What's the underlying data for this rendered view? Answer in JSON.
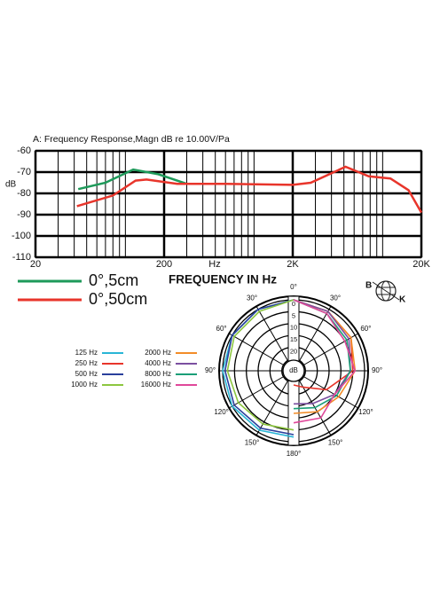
{
  "chart_data": [
    {
      "type": "line",
      "title": "A: Frequency Response,Magn dB re 10.00V/Pa",
      "ylabel": "dB",
      "xlabel": "Hz",
      "xlabel2": "FREQUENCY IN Hz",
      "xscale": "log",
      "xlim": [
        20,
        20000
      ],
      "xticks": [
        20,
        200,
        {
          "value": 2000,
          "label": "2K"
        },
        {
          "value": 20000,
          "label": "20K"
        }
      ],
      "xgrid_minor": [
        30,
        40,
        50,
        60,
        70,
        80,
        90,
        100,
        300,
        400,
        500,
        600,
        700,
        800,
        900,
        1000,
        3000,
        4000,
        5000,
        6000,
        7000,
        8000,
        9000,
        10000
      ],
      "ylim": [
        -110,
        -60
      ],
      "yticks": [
        -60,
        -70,
        -80,
        -90,
        -100,
        -110
      ],
      "grid": true,
      "series": [
        {
          "name": "0°,5cm",
          "color": "#1e9a5a",
          "x": [
            43,
            70,
            115,
            180,
            296
          ],
          "values": [
            -78,
            -75,
            -68.8,
            -71,
            -75.4
          ]
        },
        {
          "name": "0°,50cm",
          "color": "#e8352b",
          "x": [
            42,
            80,
            120,
            146,
            253,
            600,
            2000,
            2760,
            5150,
            7800,
            11500,
            15900,
            20000
          ],
          "values": [
            -86,
            -81,
            -74,
            -73.5,
            -75.5,
            -75.5,
            -76,
            -75,
            -67.5,
            -72,
            -73,
            -78.5,
            -89
          ]
        }
      ]
    },
    {
      "type": "polar",
      "r_label": "dB",
      "rlim": [
        0,
        30
      ],
      "rticks": [
        0,
        5,
        10,
        15,
        20,
        25
      ],
      "thetaticks": [
        {
          "value": 0,
          "label": "0°"
        },
        {
          "value": 30,
          "label": "30°"
        },
        {
          "value": 60,
          "label": "60°"
        },
        {
          "value": 90,
          "label": "90°"
        },
        {
          "value": 120,
          "label": "120°"
        },
        {
          "value": 150,
          "label": "150°"
        },
        {
          "value": 180,
          "label": "180°"
        },
        {
          "value": 210,
          "label": "150°"
        },
        {
          "value": 240,
          "label": "120°"
        },
        {
          "value": 270,
          "label": "90°"
        },
        {
          "value": 300,
          "label": "60°"
        },
        {
          "value": 330,
          "label": "30°"
        }
      ],
      "series": [
        {
          "name": "125 Hz",
          "color": "#29b6d6",
          "theta": [
            360,
            330,
            300,
            270,
            240,
            210,
            180
          ],
          "values": [
            0,
            0,
            0,
            0,
            0,
            1,
            2
          ]
        },
        {
          "name": "250 Hz",
          "color": "#e8352b",
          "theta": [
            0,
            30,
            60,
            90,
            120,
            150,
            180
          ],
          "values": [
            0,
            1,
            2,
            5,
            14,
            22,
            24
          ]
        },
        {
          "name": "500 Hz",
          "color": "#2a3f9c",
          "theta": [
            360,
            330,
            300,
            270,
            240,
            210,
            180
          ],
          "values": [
            0,
            0,
            0,
            1,
            1,
            2,
            3
          ]
        },
        {
          "name": "1000 Hz",
          "color": "#8cc63f",
          "theta": [
            360,
            330,
            300,
            270,
            240,
            210,
            180
          ],
          "values": [
            0,
            1,
            1,
            2,
            3,
            4,
            5
          ]
        },
        {
          "name": "2000 Hz",
          "color": "#f28c28",
          "theta": [
            0,
            30,
            60,
            90,
            120,
            150,
            180
          ],
          "values": [
            0,
            1,
            2,
            4,
            8,
            10,
            12
          ]
        },
        {
          "name": "4000 Hz",
          "color": "#7b4fa0",
          "theta": [
            0,
            30,
            60,
            90,
            120,
            150,
            180
          ],
          "values": [
            0,
            1,
            3,
            6,
            10,
            14,
            16
          ]
        },
        {
          "name": "8000 Hz",
          "color": "#1a9e77",
          "theta": [
            0,
            30,
            60,
            90,
            120,
            150,
            180
          ],
          "values": [
            0,
            2,
            4,
            6,
            9,
            12,
            14
          ]
        },
        {
          "name": "16000 Hz",
          "color": "#e0489a",
          "theta": [
            0,
            30,
            60,
            90,
            120,
            150,
            180
          ],
          "values": [
            0,
            2,
            5,
            4,
            10,
            7,
            8
          ]
        }
      ]
    }
  ],
  "logo": {
    "left": "B",
    "right": "K"
  }
}
